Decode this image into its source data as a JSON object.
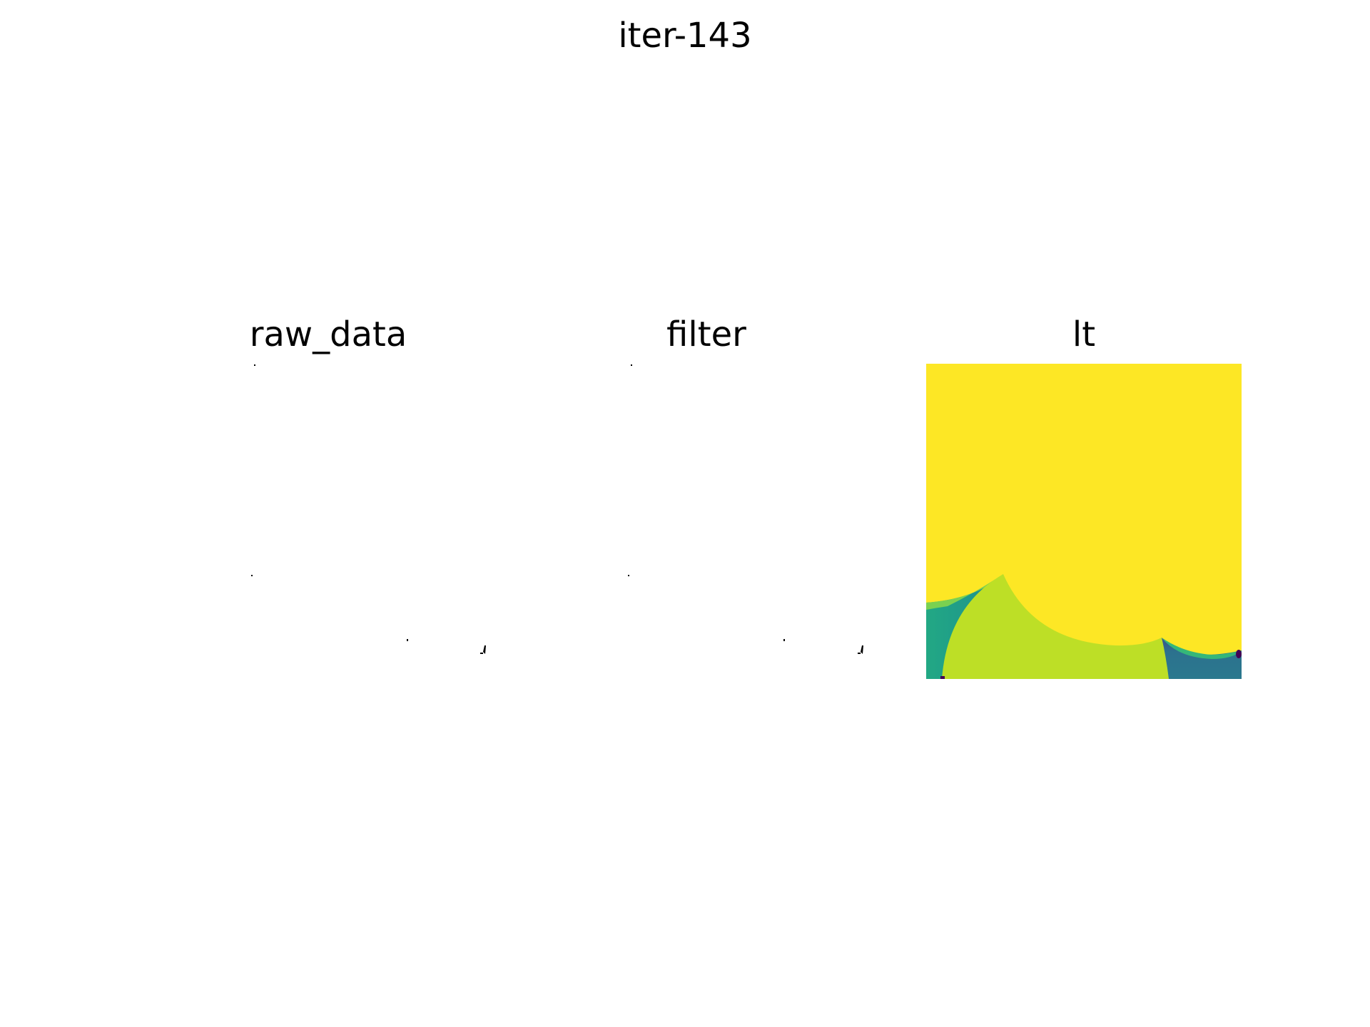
{
  "figure": {
    "suptitle": "iter-143"
  },
  "chart_data": [
    {
      "type": "heatmap",
      "title": "raw_data",
      "axes": "off",
      "content": "sparse specks on white background",
      "colors": {
        "background": "#ffffff",
        "speck": "#000000"
      }
    },
    {
      "type": "heatmap",
      "title": "filter",
      "axes": "off",
      "content": "sparse specks on white background",
      "colors": {
        "background": "#ffffff",
        "speck": "#000000"
      }
    },
    {
      "type": "heatmap",
      "title": "lt",
      "axes": "off",
      "colormap": "viridis",
      "colors": {
        "yellow": "#fde725",
        "yellow_green": "#bddf26",
        "green": "#22a884",
        "teal": "#2a788e",
        "purple": "#440154"
      }
    }
  ]
}
